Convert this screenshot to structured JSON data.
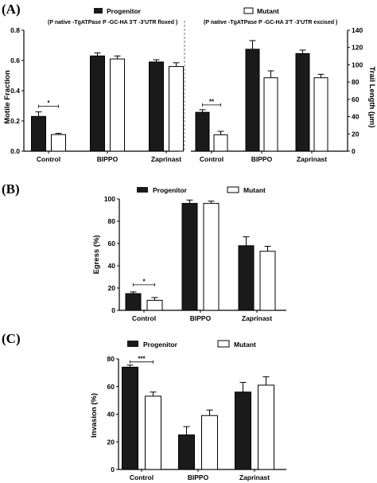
{
  "colors": {
    "progenitor": "#1a1a1a",
    "mutant": "#ffffff",
    "axis": "#000000"
  },
  "chart_data": [
    {
      "panel": "(A)",
      "type": "bar",
      "legend": {
        "progenitor": "Progenitor",
        "progenitor_sub": "(P native -TgATPase P -GC-HA 3'T -3'UTR floxed )",
        "mutant": "Mutant",
        "mutant_sub": "(P native -TgATPase P -GC-HA 3'T -3'UTR excised )"
      },
      "ylabel": "Motile Fraction",
      "ylim": [
        0,
        0.8
      ],
      "yticks": [
        "0.0",
        "0.2",
        "0.4",
        "0.6",
        "0.8"
      ],
      "y2label": "Trail Length (μm)",
      "y2lim": [
        0,
        140
      ],
      "y2ticks": [
        "0",
        "20",
        "40",
        "60",
        "80",
        "100",
        "120",
        "140"
      ],
      "left": {
        "categories": [
          "Control",
          "BIPPO",
          "Zaprinast"
        ],
        "series": [
          {
            "name": "Progenitor",
            "values": [
              0.23,
              0.63,
              0.59
            ],
            "errors": [
              0.03,
              0.02,
              0.015
            ]
          },
          {
            "name": "Mutant",
            "values": [
              0.11,
              0.61,
              0.56
            ],
            "errors": [
              0.008,
              0.02,
              0.025
            ]
          }
        ],
        "significance": [
          {
            "category": "Control",
            "label": "*"
          }
        ]
      },
      "right": {
        "categories": [
          "Control",
          "BIPPO",
          "Zaprinast"
        ],
        "series": [
          {
            "name": "Progenitor",
            "values": [
              45,
              118,
              113
            ],
            "errors": [
              3,
              10,
              4
            ]
          },
          {
            "name": "Mutant",
            "values": [
              19,
              85,
              85
            ],
            "errors": [
              4,
              8,
              4
            ]
          }
        ],
        "significance": [
          {
            "category": "Control",
            "label": "**"
          }
        ]
      }
    },
    {
      "panel": "(B)",
      "type": "bar",
      "ylabel": "Egress (%)",
      "ylim": [
        0,
        100
      ],
      "yticks": [
        "0",
        "20",
        "40",
        "60",
        "80",
        "100"
      ],
      "categories": [
        "Control",
        "BIPPO",
        "Zaprinast"
      ],
      "series": [
        {
          "name": "Progenitor",
          "values": [
            15,
            96,
            58
          ],
          "errors": [
            1.5,
            3,
            8
          ]
        },
        {
          "name": "Mutant",
          "values": [
            9,
            96,
            53
          ],
          "errors": [
            2.5,
            2,
            4.5
          ]
        }
      ],
      "significance": [
        {
          "category": "Control",
          "label": "*"
        }
      ]
    },
    {
      "panel": "(C)",
      "type": "bar",
      "ylabel": "Invasion (%)",
      "ylim": [
        0,
        80
      ],
      "yticks": [
        "0",
        "20",
        "40",
        "60",
        "80"
      ],
      "categories": [
        "Control",
        "BIPPO",
        "Zaprinast"
      ],
      "series": [
        {
          "name": "Progenitor",
          "values": [
            74,
            25,
            56
          ],
          "errors": [
            1.5,
            6,
            7
          ]
        },
        {
          "name": "Mutant",
          "values": [
            53,
            39,
            61
          ],
          "errors": [
            3,
            4,
            6
          ]
        }
      ],
      "significance": [
        {
          "category": "Control",
          "label": "***"
        }
      ]
    }
  ]
}
